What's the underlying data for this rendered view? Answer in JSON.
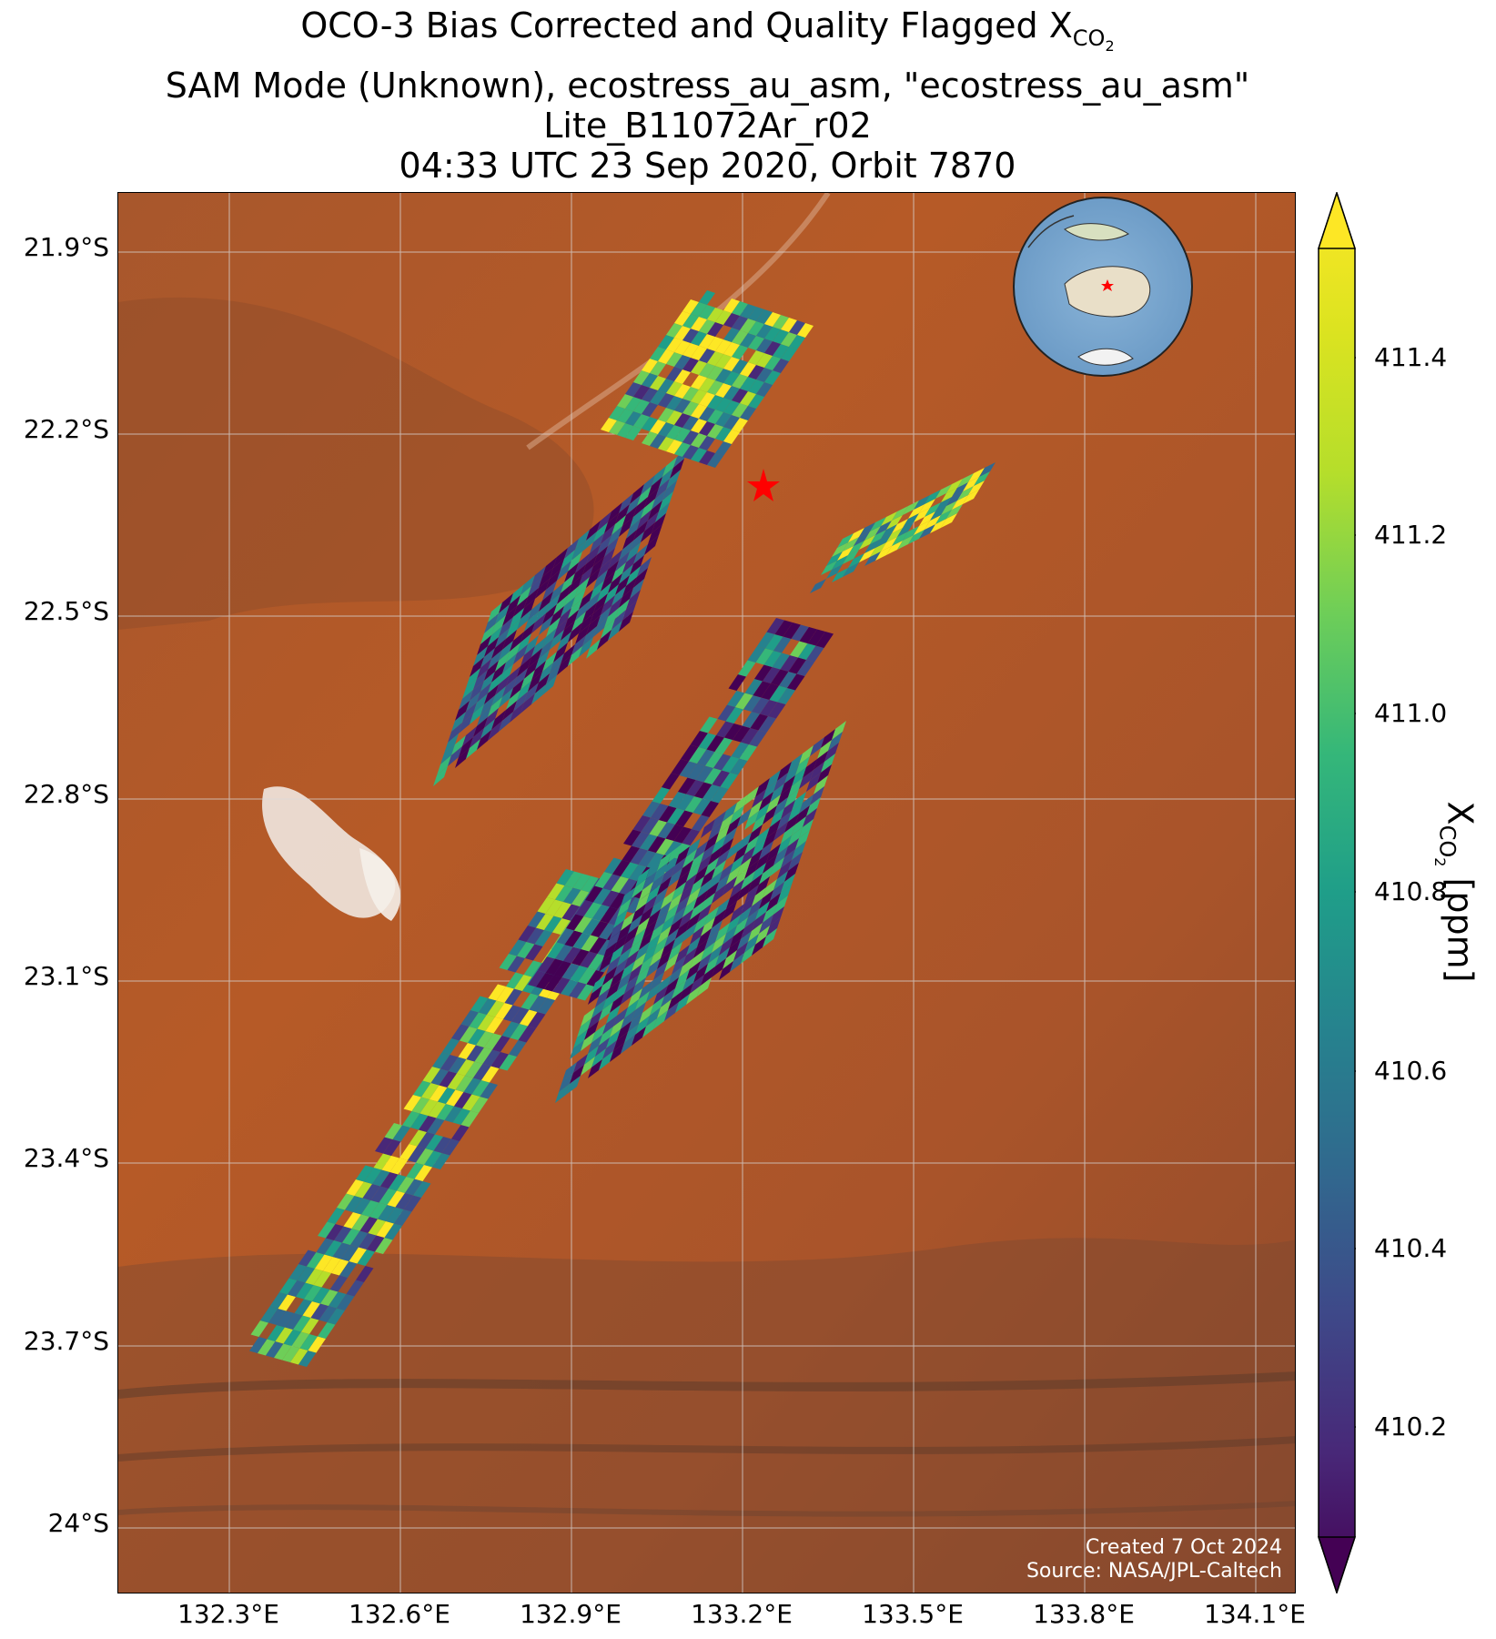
{
  "title": {
    "line1_main": "OCO-3 Bias Corrected and Quality Flagged X",
    "line1_sub": "CO",
    "line1_subsub": "2",
    "line2": "SAM Mode (Unknown), ecostress_au_asm, \"ecostress_au_asm\"",
    "line3": "Lite_B11072Ar_r02",
    "line4": "04:33 UTC 23 Sep 2020, Orbit 7870"
  },
  "axes": {
    "lat_labels": [
      "21.9°S",
      "22.2°S",
      "22.5°S",
      "22.8°S",
      "23.1°S",
      "23.4°S",
      "23.7°S",
      "24°S"
    ],
    "lon_labels": [
      "132.3°E",
      "132.6°E",
      "132.9°E",
      "133.2°E",
      "133.5°E",
      "133.8°E",
      "134.1°E"
    ]
  },
  "colorbar": {
    "label_main": "X",
    "label_sub": "CO",
    "label_subsub": "2",
    "label_units": " [ppm]",
    "ticks": [
      "411.4",
      "411.2",
      "411.0",
      "410.8",
      "410.6",
      "410.4",
      "410.2"
    ],
    "colormap": "viridis",
    "extend": "both"
  },
  "credits": {
    "created": "Created 7 Oct 2024",
    "source": "Source: NASA/JPL-Caltech"
  },
  "map": {
    "basemap": "satellite imagery, central Australia",
    "target_marker": "red star",
    "inset": "globe with red star over central Australia"
  },
  "chart_data": {
    "type": "heatmap",
    "variable": "XCO2",
    "units": "ppm",
    "colorbar_ticks": [
      411.4,
      411.2,
      411.0,
      410.8,
      410.6,
      410.4,
      410.2
    ],
    "lat_ticks": [
      -21.9,
      -22.2,
      -22.5,
      -22.8,
      -23.1,
      -23.4,
      -23.7,
      -24.0
    ],
    "lon_ticks": [
      132.3,
      132.6,
      132.9,
      133.2,
      133.5,
      133.8,
      134.1
    ],
    "target_star": {
      "lon": 133.25,
      "lat": -22.28
    }
  }
}
